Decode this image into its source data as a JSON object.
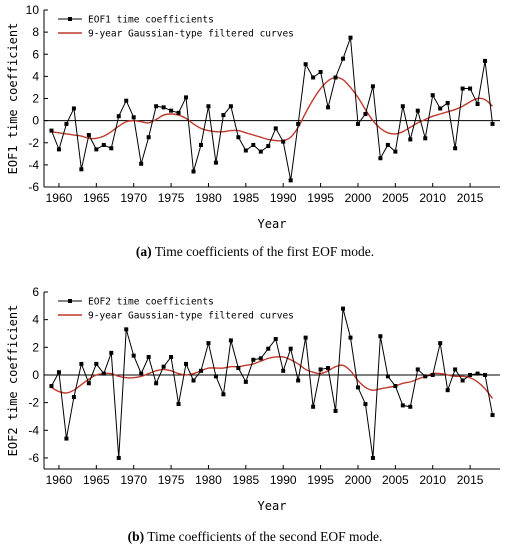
{
  "chart_data": [
    {
      "type": "line",
      "caption_label": "(a)",
      "caption_text": " Time coefficients of the first EOF mode.",
      "ylabel": "EOF1 time coefficient",
      "xlabel": "Year",
      "xlim": [
        1958,
        2019
      ],
      "ylim": [
        -6,
        10
      ],
      "xticks": [
        1960,
        1965,
        1970,
        1975,
        1980,
        1985,
        1990,
        1995,
        2000,
        2005,
        2010,
        2015
      ],
      "yticks": [
        -6,
        -4,
        -2,
        0,
        2,
        4,
        6,
        8,
        10
      ],
      "legend_position": "top-left",
      "x": [
        1959,
        1960,
        1961,
        1962,
        1963,
        1964,
        1965,
        1966,
        1967,
        1968,
        1969,
        1970,
        1971,
        1972,
        1973,
        1974,
        1975,
        1976,
        1977,
        1978,
        1979,
        1980,
        1981,
        1982,
        1983,
        1984,
        1985,
        1986,
        1987,
        1988,
        1989,
        1990,
        1991,
        1992,
        1993,
        1994,
        1995,
        1996,
        1997,
        1998,
        1999,
        2000,
        2001,
        2002,
        2003,
        2004,
        2005,
        2006,
        2007,
        2008,
        2009,
        2010,
        2011,
        2012,
        2013,
        2014,
        2015,
        2016,
        2017,
        2018
      ],
      "series": [
        {
          "name": "EOF1 time coefficients",
          "style": "markers",
          "color": "#000000",
          "values": [
            -0.9,
            -2.6,
            -0.3,
            1.1,
            -4.4,
            -1.3,
            -2.6,
            -2.2,
            -2.5,
            0.4,
            1.8,
            0.3,
            -3.9,
            -1.5,
            1.3,
            1.2,
            0.9,
            0.7,
            2.1,
            -4.6,
            -2.2,
            1.3,
            -3.8,
            0.5,
            1.3,
            -1.5,
            -2.7,
            -2.2,
            -2.8,
            -2.3,
            -0.7,
            -1.9,
            -5.4,
            -0.3,
            5.1,
            3.9,
            4.4,
            1.2,
            3.9,
            5.6,
            7.5,
            -0.3,
            0.6,
            3.1,
            -3.4,
            -2.2,
            -2.8,
            1.3,
            -1.7,
            0.9,
            -1.6,
            2.3,
            1.1,
            1.6,
            -2.5,
            2.9,
            2.9,
            1.5,
            5.4,
            -0.3
          ]
        },
        {
          "name": "9-year Gaussian-type filtered curves",
          "style": "smooth",
          "color": "#c0392b",
          "values": [
            -1.0,
            -1.1,
            -1.2,
            -1.3,
            -1.4,
            -1.6,
            -1.6,
            -1.4,
            -1.0,
            -0.5,
            -0.1,
            0.0,
            -0.1,
            -0.2,
            0.1,
            0.5,
            0.6,
            0.5,
            0.2,
            -0.3,
            -0.7,
            -0.9,
            -1.0,
            -1.0,
            -0.9,
            -0.9,
            -1.1,
            -1.3,
            -1.5,
            -1.7,
            -1.8,
            -1.8,
            -1.5,
            -0.6,
            0.7,
            1.9,
            2.9,
            3.6,
            3.9,
            3.7,
            3.0,
            2.1,
            1.0,
            0.0,
            -0.7,
            -1.1,
            -1.2,
            -1.0,
            -0.6,
            -0.2,
            0.1,
            0.4,
            0.6,
            0.8,
            1.0,
            1.3,
            1.7,
            2.0,
            1.9,
            1.3
          ]
        }
      ]
    },
    {
      "type": "line",
      "caption_label": "(b)",
      "caption_text": " Time coefficients of the second EOF mode.",
      "ylabel": "EOF2 time coefficient",
      "xlabel": "Year",
      "xlim": [
        1958,
        2019
      ],
      "ylim": [
        -6.8,
        6
      ],
      "xticks": [
        1960,
        1965,
        1970,
        1975,
        1980,
        1985,
        1990,
        1995,
        2000,
        2005,
        2010,
        2015
      ],
      "yticks": [
        -6,
        -4,
        -2,
        0,
        2,
        4,
        6
      ],
      "legend_position": "top-left",
      "x": [
        1959,
        1960,
        1961,
        1962,
        1963,
        1964,
        1965,
        1966,
        1967,
        1968,
        1969,
        1970,
        1971,
        1972,
        1973,
        1974,
        1975,
        1976,
        1977,
        1978,
        1979,
        1980,
        1981,
        1982,
        1983,
        1984,
        1985,
        1986,
        1987,
        1988,
        1989,
        1990,
        1991,
        1992,
        1993,
        1994,
        1995,
        1996,
        1997,
        1998,
        1999,
        2000,
        2001,
        2002,
        2003,
        2004,
        2005,
        2006,
        2007,
        2008,
        2009,
        2010,
        2011,
        2012,
        2013,
        2014,
        2015,
        2016,
        2017,
        2018
      ],
      "series": [
        {
          "name": "EOF2 time coefficients",
          "style": "markers",
          "color": "#000000",
          "values": [
            -0.8,
            0.2,
            -4.6,
            -1.6,
            0.8,
            -0.6,
            0.8,
            0.1,
            1.6,
            -6.0,
            3.3,
            1.4,
            0.1,
            1.3,
            -0.6,
            0.6,
            1.3,
            -2.1,
            0.8,
            -0.4,
            0.3,
            2.3,
            -0.1,
            -1.4,
            2.5,
            0.5,
            -0.5,
            1.1,
            1.2,
            1.9,
            2.6,
            0.3,
            1.9,
            -0.4,
            2.7,
            -2.3,
            0.4,
            0.5,
            -2.6,
            4.8,
            2.7,
            -0.9,
            -2.1,
            -6.0,
            2.8,
            -0.1,
            -0.8,
            -2.2,
            -2.3,
            0.4,
            -0.1,
            0.0,
            2.3,
            -1.1,
            0.4,
            -0.4,
            0.0,
            0.1,
            0.0,
            -2.9
          ]
        },
        {
          "name": "9-year Gaussian-type filtered curves",
          "style": "smooth",
          "color": "#c0392b",
          "values": [
            -0.9,
            -1.2,
            -1.3,
            -1.1,
            -0.7,
            -0.3,
            0.0,
            0.1,
            0.1,
            -0.1,
            -0.2,
            -0.2,
            -0.1,
            0.1,
            0.3,
            0.4,
            0.3,
            0.1,
            0.0,
            0.1,
            0.3,
            0.5,
            0.5,
            0.5,
            0.6,
            0.6,
            0.7,
            0.8,
            1.0,
            1.2,
            1.3,
            1.3,
            1.1,
            0.8,
            0.4,
            0.2,
            0.1,
            0.3,
            0.6,
            0.7,
            0.3,
            -0.4,
            -0.9,
            -1.1,
            -1.0,
            -0.9,
            -0.8,
            -0.6,
            -0.5,
            -0.3,
            -0.1,
            0.1,
            0.1,
            0.0,
            -0.1,
            -0.1,
            -0.2,
            -0.5,
            -1.0,
            -1.7
          ]
        }
      ]
    }
  ]
}
